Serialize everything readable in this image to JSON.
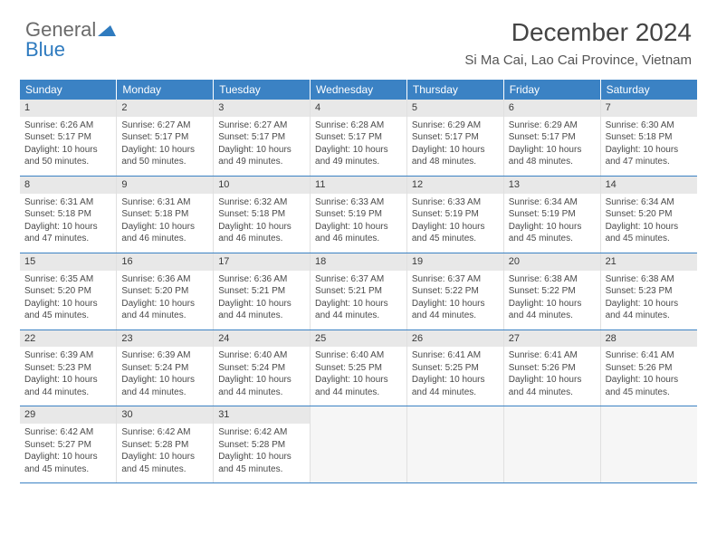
{
  "brand": {
    "word1": "General",
    "word2": "Blue",
    "tri_color": "#2f7bbf"
  },
  "title": "December 2024",
  "subtitle": "Si Ma Cai, Lao Cai Province, Vietnam",
  "styling": {
    "page_bg": "#ffffff",
    "header_bg": "#3b82c4",
    "header_text": "#ffffff",
    "daynum_bg": "#e8e8e8",
    "cell_border": "#3b82c4",
    "cell_sep": "#e0e0e0",
    "body_text": "#4a4a4a",
    "title_fontsize": 28,
    "subtitle_fontsize": 15,
    "header_fontsize": 12,
    "cell_fontsize": 10
  },
  "weekdays": [
    "Sunday",
    "Monday",
    "Tuesday",
    "Wednesday",
    "Thursday",
    "Friday",
    "Saturday"
  ],
  "weeks": [
    [
      {
        "n": "1",
        "sr": "Sunrise: 6:26 AM",
        "ss": "Sunset: 5:17 PM",
        "d1": "Daylight: 10 hours",
        "d2": "and 50 minutes."
      },
      {
        "n": "2",
        "sr": "Sunrise: 6:27 AM",
        "ss": "Sunset: 5:17 PM",
        "d1": "Daylight: 10 hours",
        "d2": "and 50 minutes."
      },
      {
        "n": "3",
        "sr": "Sunrise: 6:27 AM",
        "ss": "Sunset: 5:17 PM",
        "d1": "Daylight: 10 hours",
        "d2": "and 49 minutes."
      },
      {
        "n": "4",
        "sr": "Sunrise: 6:28 AM",
        "ss": "Sunset: 5:17 PM",
        "d1": "Daylight: 10 hours",
        "d2": "and 49 minutes."
      },
      {
        "n": "5",
        "sr": "Sunrise: 6:29 AM",
        "ss": "Sunset: 5:17 PM",
        "d1": "Daylight: 10 hours",
        "d2": "and 48 minutes."
      },
      {
        "n": "6",
        "sr": "Sunrise: 6:29 AM",
        "ss": "Sunset: 5:17 PM",
        "d1": "Daylight: 10 hours",
        "d2": "and 48 minutes."
      },
      {
        "n": "7",
        "sr": "Sunrise: 6:30 AM",
        "ss": "Sunset: 5:18 PM",
        "d1": "Daylight: 10 hours",
        "d2": "and 47 minutes."
      }
    ],
    [
      {
        "n": "8",
        "sr": "Sunrise: 6:31 AM",
        "ss": "Sunset: 5:18 PM",
        "d1": "Daylight: 10 hours",
        "d2": "and 47 minutes."
      },
      {
        "n": "9",
        "sr": "Sunrise: 6:31 AM",
        "ss": "Sunset: 5:18 PM",
        "d1": "Daylight: 10 hours",
        "d2": "and 46 minutes."
      },
      {
        "n": "10",
        "sr": "Sunrise: 6:32 AM",
        "ss": "Sunset: 5:18 PM",
        "d1": "Daylight: 10 hours",
        "d2": "and 46 minutes."
      },
      {
        "n": "11",
        "sr": "Sunrise: 6:33 AM",
        "ss": "Sunset: 5:19 PM",
        "d1": "Daylight: 10 hours",
        "d2": "and 46 minutes."
      },
      {
        "n": "12",
        "sr": "Sunrise: 6:33 AM",
        "ss": "Sunset: 5:19 PM",
        "d1": "Daylight: 10 hours",
        "d2": "and 45 minutes."
      },
      {
        "n": "13",
        "sr": "Sunrise: 6:34 AM",
        "ss": "Sunset: 5:19 PM",
        "d1": "Daylight: 10 hours",
        "d2": "and 45 minutes."
      },
      {
        "n": "14",
        "sr": "Sunrise: 6:34 AM",
        "ss": "Sunset: 5:20 PM",
        "d1": "Daylight: 10 hours",
        "d2": "and 45 minutes."
      }
    ],
    [
      {
        "n": "15",
        "sr": "Sunrise: 6:35 AM",
        "ss": "Sunset: 5:20 PM",
        "d1": "Daylight: 10 hours",
        "d2": "and 45 minutes."
      },
      {
        "n": "16",
        "sr": "Sunrise: 6:36 AM",
        "ss": "Sunset: 5:20 PM",
        "d1": "Daylight: 10 hours",
        "d2": "and 44 minutes."
      },
      {
        "n": "17",
        "sr": "Sunrise: 6:36 AM",
        "ss": "Sunset: 5:21 PM",
        "d1": "Daylight: 10 hours",
        "d2": "and 44 minutes."
      },
      {
        "n": "18",
        "sr": "Sunrise: 6:37 AM",
        "ss": "Sunset: 5:21 PM",
        "d1": "Daylight: 10 hours",
        "d2": "and 44 minutes."
      },
      {
        "n": "19",
        "sr": "Sunrise: 6:37 AM",
        "ss": "Sunset: 5:22 PM",
        "d1": "Daylight: 10 hours",
        "d2": "and 44 minutes."
      },
      {
        "n": "20",
        "sr": "Sunrise: 6:38 AM",
        "ss": "Sunset: 5:22 PM",
        "d1": "Daylight: 10 hours",
        "d2": "and 44 minutes."
      },
      {
        "n": "21",
        "sr": "Sunrise: 6:38 AM",
        "ss": "Sunset: 5:23 PM",
        "d1": "Daylight: 10 hours",
        "d2": "and 44 minutes."
      }
    ],
    [
      {
        "n": "22",
        "sr": "Sunrise: 6:39 AM",
        "ss": "Sunset: 5:23 PM",
        "d1": "Daylight: 10 hours",
        "d2": "and 44 minutes."
      },
      {
        "n": "23",
        "sr": "Sunrise: 6:39 AM",
        "ss": "Sunset: 5:24 PM",
        "d1": "Daylight: 10 hours",
        "d2": "and 44 minutes."
      },
      {
        "n": "24",
        "sr": "Sunrise: 6:40 AM",
        "ss": "Sunset: 5:24 PM",
        "d1": "Daylight: 10 hours",
        "d2": "and 44 minutes."
      },
      {
        "n": "25",
        "sr": "Sunrise: 6:40 AM",
        "ss": "Sunset: 5:25 PM",
        "d1": "Daylight: 10 hours",
        "d2": "and 44 minutes."
      },
      {
        "n": "26",
        "sr": "Sunrise: 6:41 AM",
        "ss": "Sunset: 5:25 PM",
        "d1": "Daylight: 10 hours",
        "d2": "and 44 minutes."
      },
      {
        "n": "27",
        "sr": "Sunrise: 6:41 AM",
        "ss": "Sunset: 5:26 PM",
        "d1": "Daylight: 10 hours",
        "d2": "and 44 minutes."
      },
      {
        "n": "28",
        "sr": "Sunrise: 6:41 AM",
        "ss": "Sunset: 5:26 PM",
        "d1": "Daylight: 10 hours",
        "d2": "and 45 minutes."
      }
    ],
    [
      {
        "n": "29",
        "sr": "Sunrise: 6:42 AM",
        "ss": "Sunset: 5:27 PM",
        "d1": "Daylight: 10 hours",
        "d2": "and 45 minutes."
      },
      {
        "n": "30",
        "sr": "Sunrise: 6:42 AM",
        "ss": "Sunset: 5:28 PM",
        "d1": "Daylight: 10 hours",
        "d2": "and 45 minutes."
      },
      {
        "n": "31",
        "sr": "Sunrise: 6:42 AM",
        "ss": "Sunset: 5:28 PM",
        "d1": "Daylight: 10 hours",
        "d2": "and 45 minutes."
      },
      {
        "empty": true
      },
      {
        "empty": true
      },
      {
        "empty": true
      },
      {
        "empty": true
      }
    ]
  ]
}
